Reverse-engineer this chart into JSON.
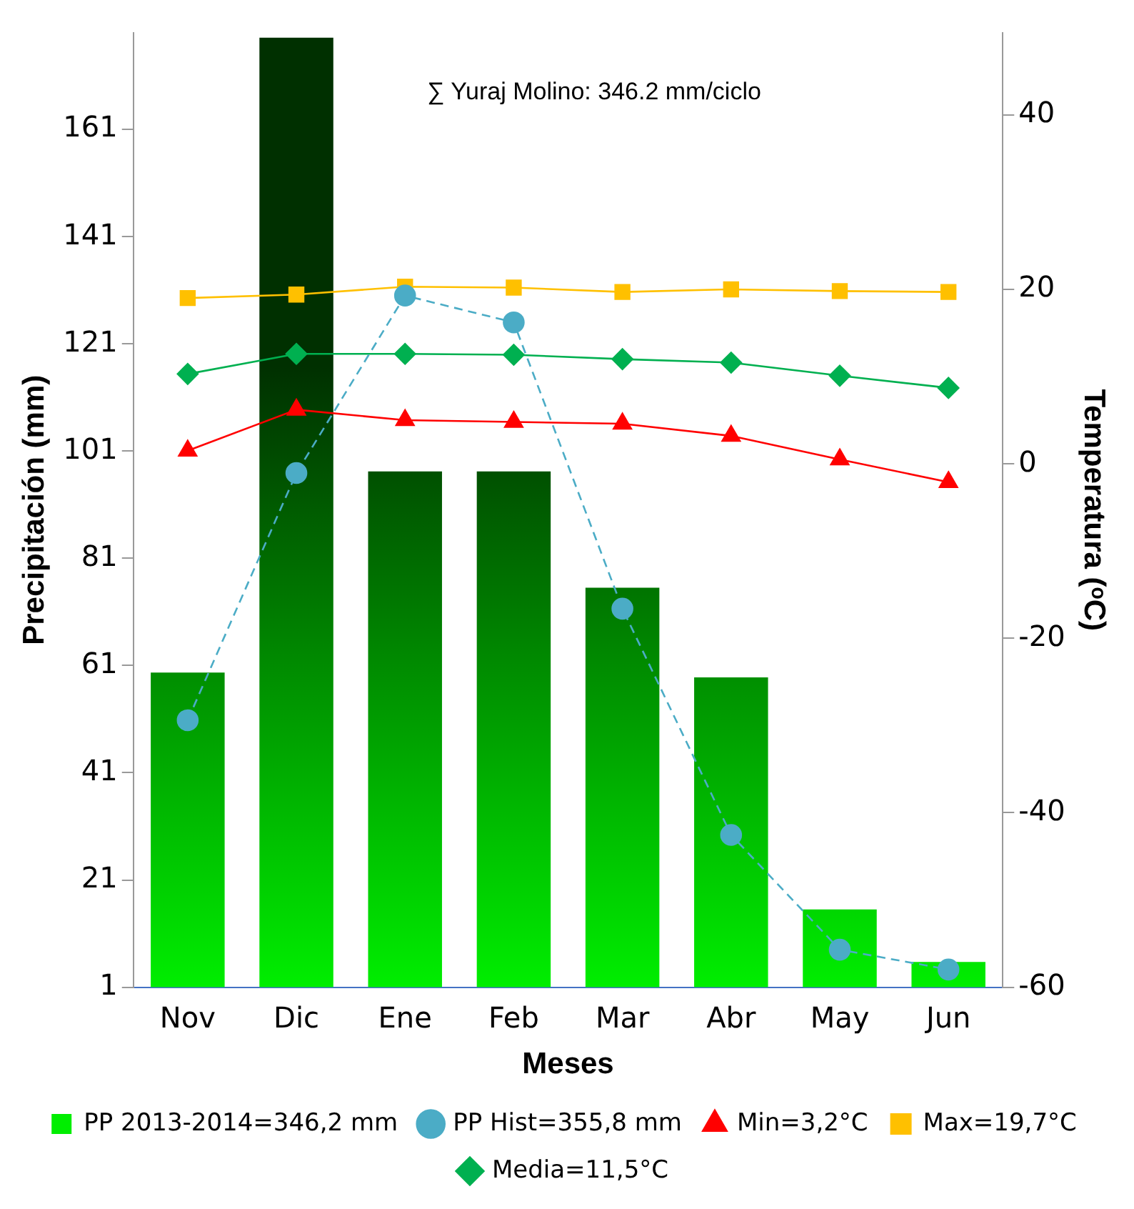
{
  "chart_data": {
    "type": "bar",
    "categories": [
      "Nov",
      "Dic",
      "Ene",
      "Feb",
      "Mar",
      "Abr",
      "May",
      "Jun"
    ],
    "series": [
      {
        "name": "PP 2013-2014=346,2 mm",
        "color": "#00ee00",
        "values": [
          59.7,
          178.1,
          97.2,
          97.2,
          75.5,
          58.8,
          15.5,
          5.7
        ]
      },
      {
        "name": "PP Hist=355,8 mm",
        "type": "line",
        "color": "#4bacc6",
        "marker": "circle",
        "line_style": "dashed",
        "values": [
          50.8,
          96.9,
          130.0,
          125.0,
          71.6,
          29.4,
          8.0,
          4.3
        ]
      },
      {
        "name": "Min=3,2°C",
        "type": "line",
        "color": "#ff0000",
        "marker": "triangle",
        "line_style": "solid",
        "axis": "y2",
        "values": [
          1.5,
          6.2,
          5.0,
          4.8,
          4.6,
          3.2,
          0.5,
          -2.1
        ]
      },
      {
        "name": "Max=19,7°C",
        "type": "line",
        "color": "#ffc000",
        "marker": "square",
        "line_style": "solid",
        "axis": "y2",
        "values": [
          19.0,
          19.4,
          20.3,
          20.2,
          19.7,
          20.0,
          19.8,
          19.7
        ]
      },
      {
        "name": "Media=11,5°C",
        "type": "line",
        "color": "#00b050",
        "marker": "diamond",
        "line_style": "solid",
        "axis": "y2",
        "values": [
          10.3,
          12.6,
          12.6,
          12.5,
          12.0,
          11.6,
          10.1,
          8.7
        ]
      }
    ],
    "xlabel": "Meses",
    "ylabel": "Precipitación (mm)",
    "y2label": "Temperatura (ᵒC)",
    "ylim": [
      1,
      179
    ],
    "yticks": [
      1,
      21,
      41,
      61,
      81,
      101,
      121,
      141,
      161
    ],
    "y2lim": [
      -60,
      49.4
    ],
    "y2ticks": [
      -60,
      -40,
      -20,
      0,
      20,
      40
    ],
    "annotations": [
      "∑ Yuraj Molino: 346.2 mm/ciclo"
    ],
    "legend": "bottom"
  }
}
